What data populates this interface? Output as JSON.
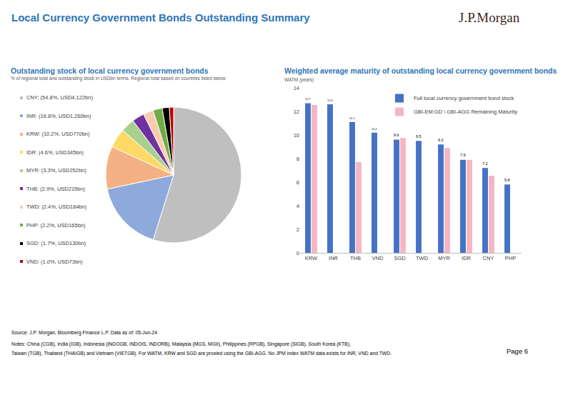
{
  "header": {
    "title": "Local Currency Government Bonds Outstanding Summary",
    "logo": "J.P.Morgan"
  },
  "chart_data": [
    {
      "type": "pie",
      "title": "Outstanding stock of local currency government bonds",
      "subtitle": "% of regional total and outstanding stock in USDbn terms. Regional total based on countries listed below",
      "categories": [
        "CNY: (54.8%, USD4,122bn)",
        "INR: (16.8%, USD1,260bn)",
        "KRW: (10.2%, USD770bn)",
        "IDR: (4.6%, USD345bn)",
        "MYR: (3.3%, USD252bn)",
        "THB: (2.9%, USD215bn)",
        "TWD: (2.4%, USD184bn)",
        "PHP: (2.2%, USD165bn)",
        "SGD: (1.7%, USD130bn)",
        "VND: (1.0%, USD73bn)"
      ],
      "values": [
        54.8,
        16.8,
        10.2,
        4.6,
        3.3,
        2.9,
        2.4,
        2.2,
        1.7,
        1.0
      ],
      "colors": [
        "#bfbfbf",
        "#8eaadb",
        "#f4b183",
        "#ffd966",
        "#a9d18e",
        "#7030a0",
        "#f8cbad",
        "#70ad47",
        "#000000",
        "#c00000"
      ],
      "legend": "left"
    },
    {
      "type": "bar",
      "title": "Weighted average maturity of outstanding local currency government bonds",
      "subtitle": "WATM (years)",
      "categories": [
        "KRW",
        "INR",
        "THB",
        "VND",
        "SGD",
        "TWD",
        "MYR",
        "IDR",
        "CNY",
        "PHP"
      ],
      "series": [
        {
          "name": "Full local currency government bond stock",
          "color": "#4472c4",
          "values": [
            12.7,
            12.6,
            11.1,
            10.2,
            9.6,
            9.5,
            9.2,
            7.9,
            7.2,
            5.8
          ],
          "data_labels": true
        },
        {
          "name": "GBI-EM:GD \\ GBI-AGG Remaining Maturity",
          "color": "#f4b6c2",
          "values": [
            12.55,
            null,
            7.7,
            null,
            9.75,
            null,
            8.9,
            7.9,
            6.55,
            null
          ]
        }
      ],
      "ylim": [
        0,
        14
      ],
      "yticks": [
        0,
        2,
        4,
        6,
        8,
        10,
        12,
        14
      ],
      "grid": false,
      "legend": "top right"
    }
  ],
  "footer": {
    "source": "Source: J.P. Morgan, Bloomberg Finance L.P.  Data as of: 05-Jun-24",
    "notes": [
      "Notes: China (CGB), India (IGB), Indonesia (INDOGB, INDOIS, INDORB), Malaysia (MGS, MGII), Philippines (RPGB), Singapore (SIGB), South Korea (KTB),",
      "Taiwan (TGB), Thailand (THAIGB) and Vietnam (VIETGB). For WATM, KRW and SGD are proxied using the GBI-AGG. No JPM index WATM data exists for INR, VND and TWD."
    ],
    "page": "Page 6"
  }
}
